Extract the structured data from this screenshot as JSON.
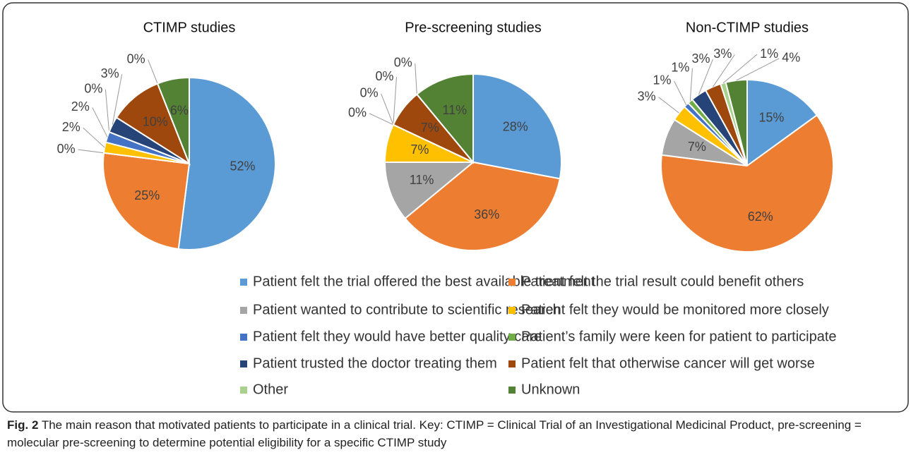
{
  "legend": {
    "categories": [
      "Patient felt the trial offered the best available treatment",
      "Patient felt the trial result could benefit others",
      "Patient wanted to contribute to scientific research",
      "Patient felt they would be monitored more closely",
      "Patient felt they would have better quality care",
      "Patient’s family were keen  for patient to participate",
      "Patient trusted the doctor treating them",
      "Patient felt that otherwise cancer will get worse",
      "Other",
      "Unknown"
    ],
    "colors": [
      "#5b9bd5",
      "#ed7d31",
      "#a5a5a5",
      "#ffc000",
      "#4472c4",
      "#70ad47",
      "#264478",
      "#9e480e",
      "#a9d18e",
      "#548235"
    ]
  },
  "chart_data": [
    {
      "type": "pie",
      "title": "CTIMP  studies",
      "values": [
        52,
        25,
        0,
        2,
        2,
        0,
        3,
        10,
        0,
        6
      ],
      "value_labels": [
        "52%",
        "25%",
        "0%",
        "2%",
        "2%",
        "0%",
        "3%",
        "10%",
        "0%",
        "6%"
      ]
    },
    {
      "type": "pie",
      "title": "Pre-screening studies",
      "values": [
        28,
        36,
        11,
        7,
        0,
        0,
        0,
        7,
        0,
        11
      ],
      "value_labels": [
        "28%",
        "36%",
        "11%",
        "7%",
        "0%",
        "0%",
        "0%",
        "7%",
        "0%",
        "11%"
      ]
    },
    {
      "type": "pie",
      "title": "Non-CTIMP  studies",
      "values": [
        15,
        62,
        7,
        3,
        1,
        1,
        3,
        3,
        1,
        4
      ],
      "value_labels": [
        "15%",
        "62%",
        "7%",
        "3%",
        "1%",
        "1%",
        "3%",
        "3%",
        "1%",
        "4%"
      ]
    }
  ],
  "caption": {
    "label": "Fig. 2",
    "text": "The main reason that motivated patients to participate in a clinical trial. Key: CTIMP = Clinical Trial of an Investigational Medicinal Product, pre-screening = molecular pre-screening to determine potential eligibility for a specific CTIMP study"
  }
}
